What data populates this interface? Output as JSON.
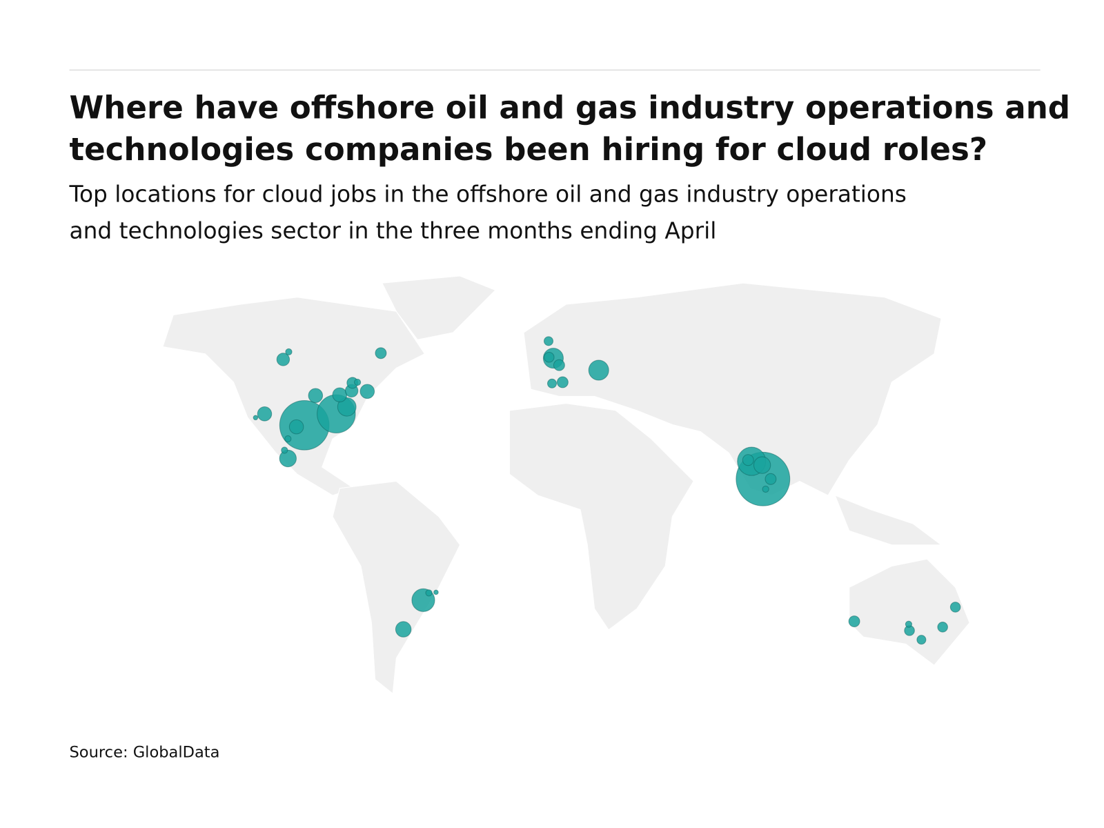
{
  "chart_data": {
    "type": "bubble-map",
    "title": [
      "Where have offshore oil and gas industry operations and",
      "technologies companies been hiring for cloud roles?"
    ],
    "subtitle": [
      "Top locations for cloud jobs in the offshore oil and gas industry operations",
      "and technologies sector in the three months ending April"
    ],
    "source": "Source: GlobalData",
    "color": "#1aa39e",
    "points": [
      {
        "lon": -93.3,
        "lat": 30.0,
        "value": 122
      },
      {
        "lon": -81.3,
        "lat": 33.6,
        "value": 73
      },
      {
        "lon": 79.5,
        "lat": 13.0,
        "value": 144
      },
      {
        "lon": 75.2,
        "lat": 18.6,
        "value": 40
      },
      {
        "lon": 79.2,
        "lat": 17.4,
        "value": 14
      },
      {
        "lon": 82.4,
        "lat": 13.0,
        "value": 6
      },
      {
        "lon": 80.5,
        "lat": 9.8,
        "value": 2
      },
      {
        "lon": 73.9,
        "lat": 19.0,
        "value": 6
      },
      {
        "lon": -48.5,
        "lat": -25.3,
        "value": 26
      },
      {
        "lon": -56.0,
        "lat": -34.5,
        "value": 12
      },
      {
        "lon": 17.6,
        "lat": 47.4,
        "value": 20
      },
      {
        "lon": 0.5,
        "lat": 51.2,
        "value": 20
      },
      {
        "lon": 2.7,
        "lat": 49.0,
        "value": 6
      },
      {
        "lon": -1.3,
        "lat": 56.6,
        "value": 4
      },
      {
        "lon": -1.1,
        "lat": 51.5,
        "value": 5
      },
      {
        "lon": 0,
        "lat": 43.2,
        "value": 4
      },
      {
        "lon": 4.0,
        "lat": 43.6,
        "value": 6
      },
      {
        "lon": -101.3,
        "lat": 50.8,
        "value": 8
      },
      {
        "lon": -99.2,
        "lat": 53.2,
        "value": 2
      },
      {
        "lon": -64.5,
        "lat": 52.8,
        "value": 6
      },
      {
        "lon": -96.3,
        "lat": 29.5,
        "value": 10
      },
      {
        "lon": -77.3,
        "lat": 35.8,
        "value": 17
      },
      {
        "lon": -80.0,
        "lat": 39.6,
        "value": 10
      },
      {
        "lon": -75.5,
        "lat": 40.9,
        "value": 8
      },
      {
        "lon": -75.2,
        "lat": 43.4,
        "value": 6
      },
      {
        "lon": -73.3,
        "lat": 43.6,
        "value": 2
      },
      {
        "lon": -69.6,
        "lat": 40.7,
        "value": 10
      },
      {
        "lon": -89.1,
        "lat": 39.4,
        "value": 10
      },
      {
        "lon": -108.3,
        "lat": 33.6,
        "value": 10
      },
      {
        "lon": -111.7,
        "lat": 32.4,
        "value": 1
      },
      {
        "lon": -99.5,
        "lat": 19.5,
        "value": 14
      },
      {
        "lon": -100.8,
        "lat": 22.1,
        "value": 2
      },
      {
        "lon": -99.5,
        "lat": 25.7,
        "value": 2
      },
      {
        "lon": -46.4,
        "lat": -23.0,
        "value": 2
      },
      {
        "lon": -43.7,
        "lat": -22.8,
        "value": 1
      },
      {
        "lon": 113.9,
        "lat": -32.0,
        "value": 6
      },
      {
        "lon": 134.7,
        "lat": -34.9,
        "value": 5
      },
      {
        "lon": 134.4,
        "lat": -32.9,
        "value": 2
      },
      {
        "lon": 139.2,
        "lat": -37.8,
        "value": 4
      },
      {
        "lon": 147.2,
        "lat": -33.8,
        "value": 5
      },
      {
        "lon": 152.0,
        "lat": -27.5,
        "value": 5
      }
    ]
  }
}
